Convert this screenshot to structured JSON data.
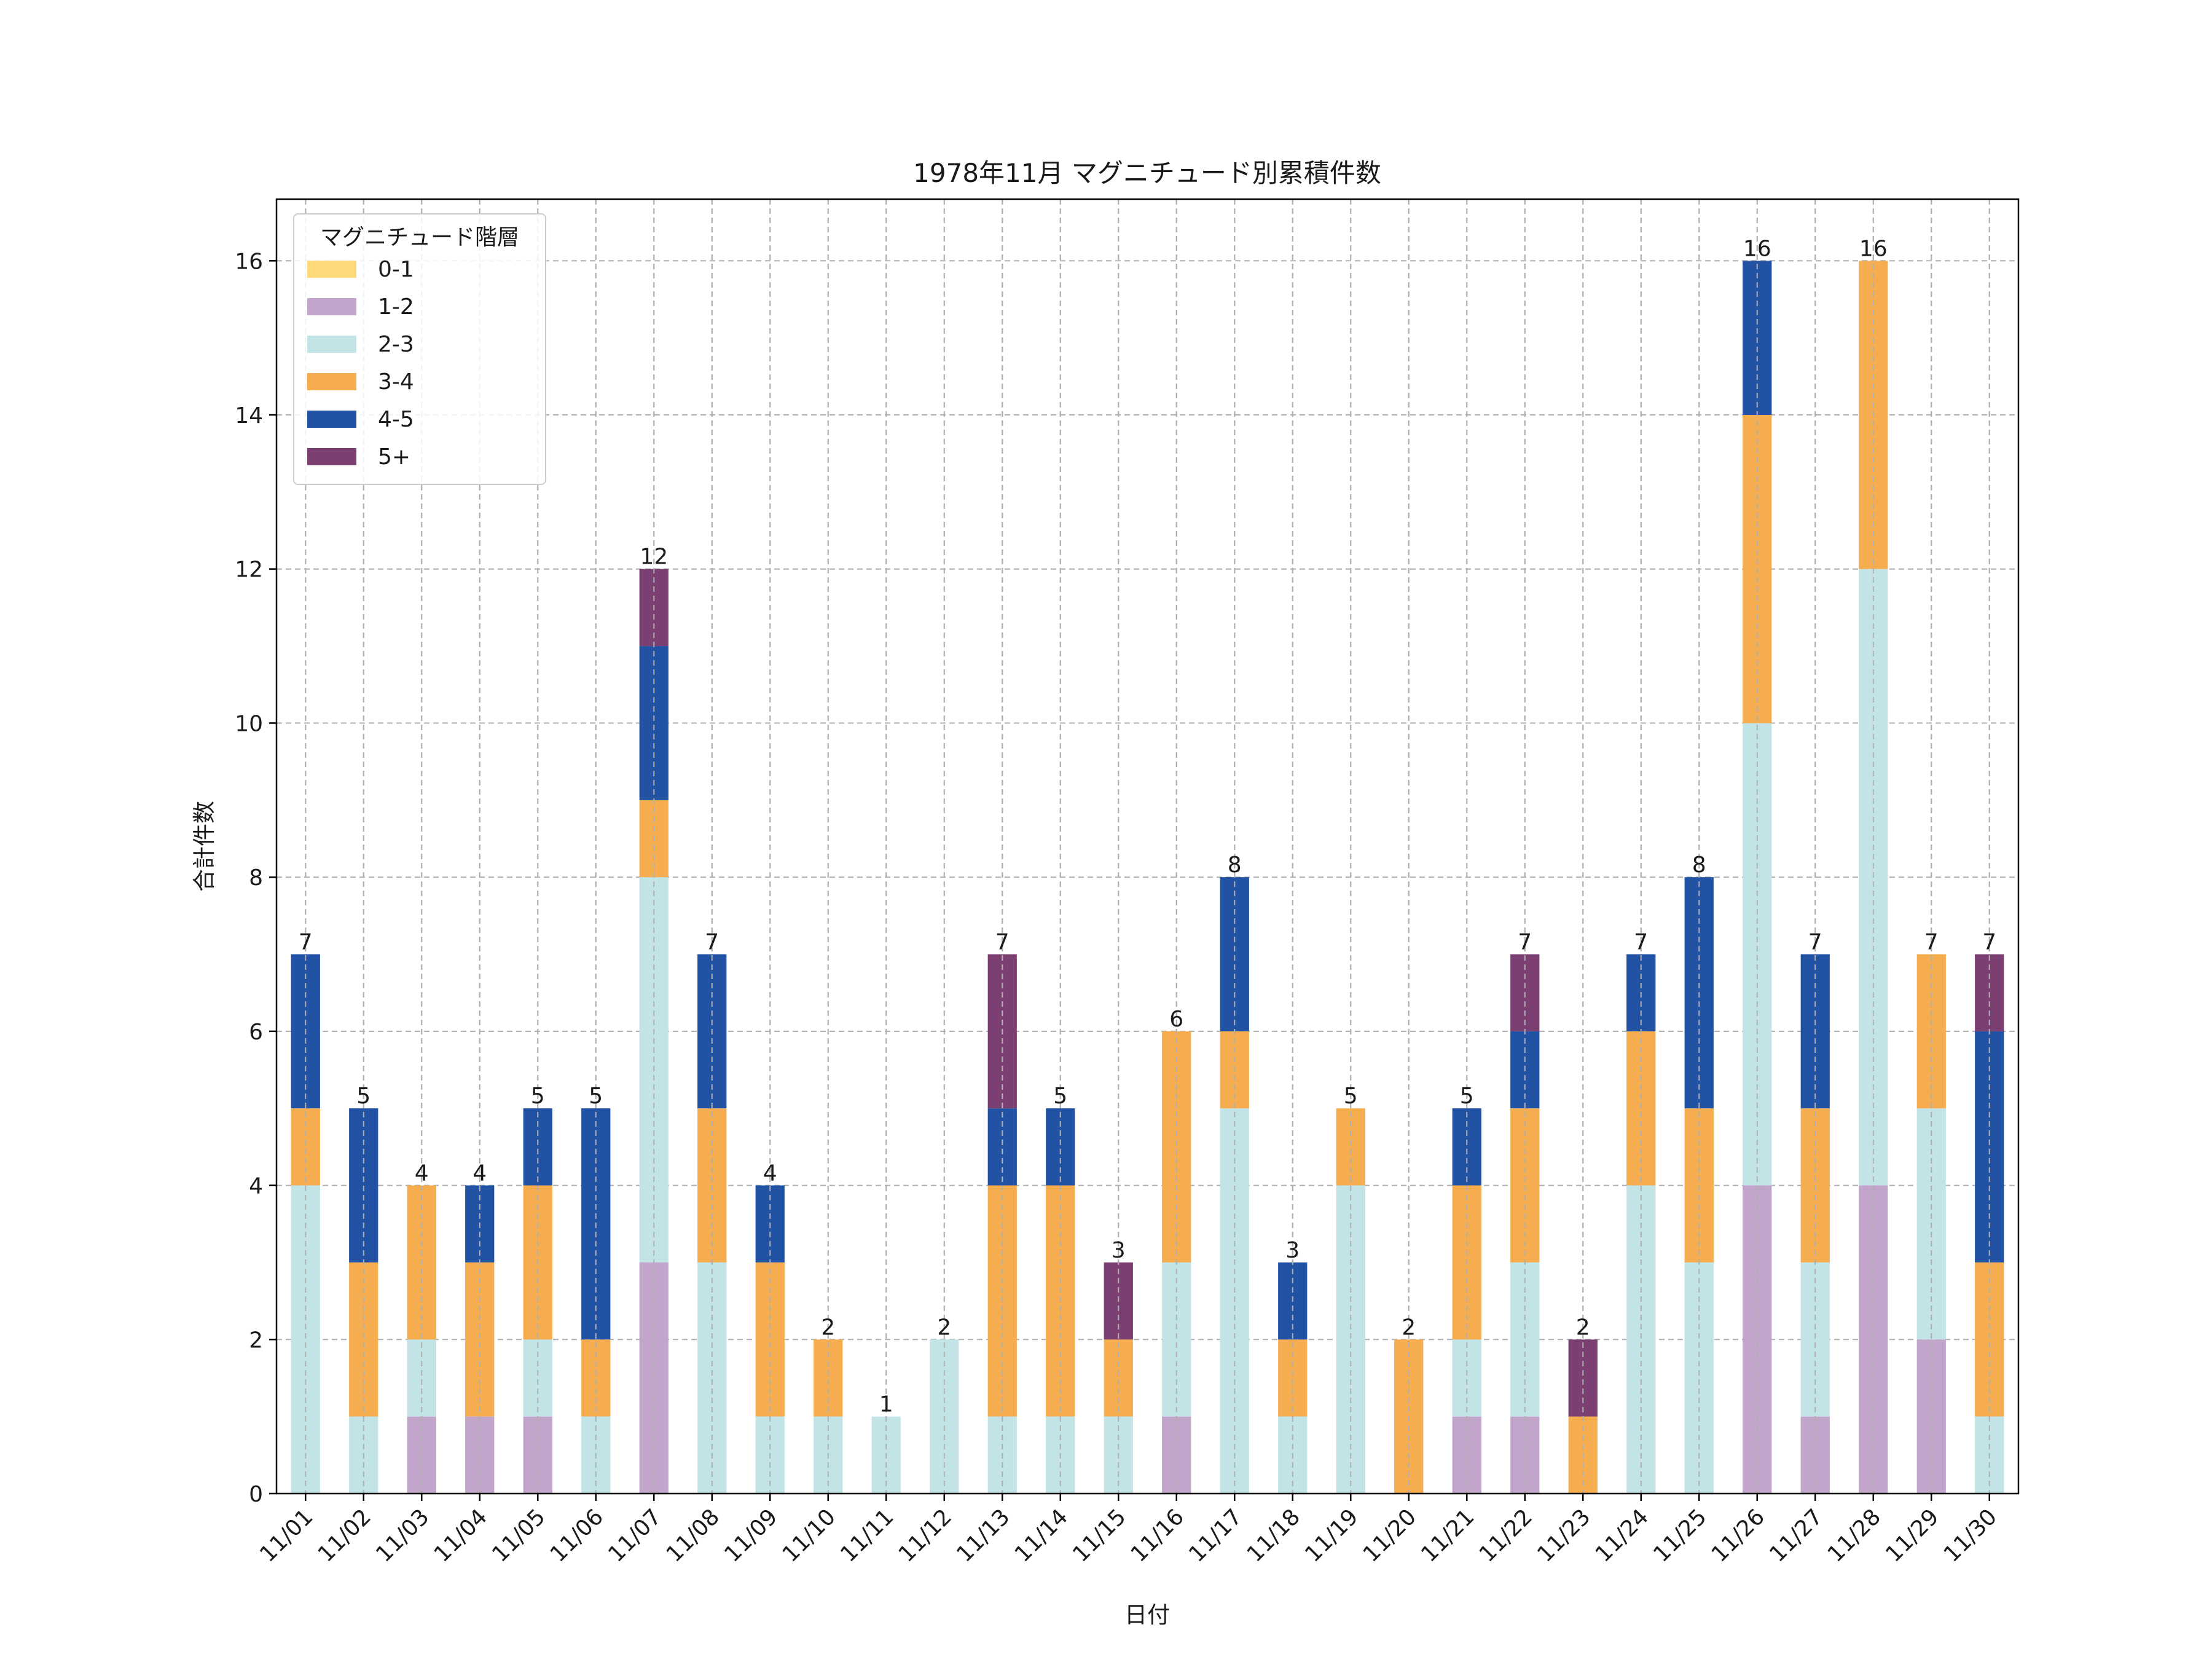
{
  "chart_data": {
    "type": "bar",
    "stacked": true,
    "title": "1978年11月 マグニチュード別累積件数",
    "xlabel": "日付",
    "ylabel": "合計件数",
    "ylim": [
      0,
      16.8
    ],
    "yticks": [
      0,
      2,
      4,
      6,
      8,
      10,
      12,
      14,
      16
    ],
    "grid": true,
    "legend": {
      "title": "マグニチュード階層",
      "placement": "top-left"
    },
    "categories": [
      "11/01",
      "11/02",
      "11/03",
      "11/04",
      "11/05",
      "11/06",
      "11/07",
      "11/08",
      "11/09",
      "11/10",
      "11/11",
      "11/12",
      "11/13",
      "11/14",
      "11/15",
      "11/16",
      "11/17",
      "11/18",
      "11/19",
      "11/20",
      "11/21",
      "11/22",
      "11/23",
      "11/24",
      "11/25",
      "11/26",
      "11/27",
      "11/28",
      "11/29",
      "11/30"
    ],
    "series": [
      {
        "name": "0-1",
        "color": "#FDD97A",
        "values": [
          0,
          0,
          0,
          0,
          0,
          0,
          0,
          0,
          0,
          0,
          0,
          0,
          0,
          0,
          0,
          0,
          0,
          0,
          0,
          0,
          0,
          0,
          0,
          0,
          0,
          0,
          0,
          0,
          0,
          0
        ]
      },
      {
        "name": "1-2",
        "color": "#C2A5CB",
        "values": [
          0,
          0,
          1,
          1,
          1,
          0,
          3,
          0,
          0,
          0,
          0,
          0,
          0,
          0,
          0,
          1,
          0,
          0,
          0,
          0,
          1,
          1,
          0,
          0,
          0,
          4,
          1,
          4,
          2,
          0
        ]
      },
      {
        "name": "2-3",
        "color": "#C2E4E6",
        "values": [
          4,
          1,
          1,
          0,
          1,
          1,
          5,
          3,
          1,
          1,
          1,
          2,
          1,
          1,
          1,
          2,
          5,
          1,
          4,
          0,
          1,
          2,
          0,
          4,
          3,
          6,
          2,
          8,
          3,
          1
        ]
      },
      {
        "name": "3-4",
        "color": "#F5AD4F",
        "values": [
          1,
          2,
          2,
          2,
          2,
          1,
          1,
          2,
          2,
          1,
          0,
          0,
          3,
          3,
          1,
          3,
          1,
          1,
          1,
          2,
          2,
          2,
          1,
          2,
          2,
          4,
          2,
          4,
          2,
          2
        ]
      },
      {
        "name": "4-5",
        "color": "#2152A4",
        "values": [
          2,
          2,
          0,
          1,
          1,
          3,
          2,
          2,
          1,
          0,
          0,
          0,
          1,
          1,
          0,
          0,
          2,
          1,
          0,
          0,
          1,
          1,
          0,
          1,
          3,
          2,
          2,
          0,
          0,
          3
        ]
      },
      {
        "name": "5+",
        "color": "#7B3F72",
        "values": [
          0,
          0,
          0,
          0,
          0,
          0,
          1,
          0,
          0,
          0,
          0,
          0,
          2,
          0,
          1,
          0,
          0,
          0,
          0,
          0,
          0,
          1,
          1,
          0,
          0,
          0,
          0,
          0,
          0,
          1
        ]
      }
    ],
    "totals": [
      7,
      5,
      4,
      4,
      5,
      5,
      12,
      7,
      4,
      2,
      1,
      2,
      7,
      5,
      3,
      6,
      8,
      3,
      5,
      2,
      5,
      7,
      2,
      7,
      8,
      16,
      7,
      16,
      7,
      7
    ]
  }
}
